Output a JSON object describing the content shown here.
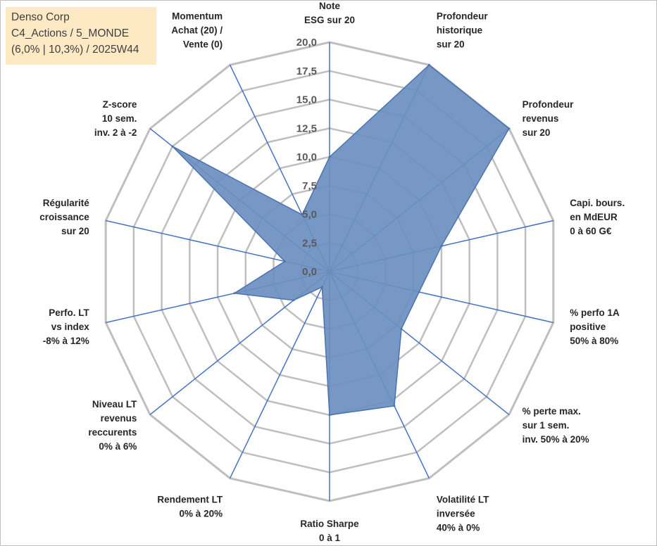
{
  "title_box": {
    "line1": "Denso Corp",
    "line2": "C4_Actions / 5_MONDE",
    "line3": "(6,0% | 10,3%) / 2025W44"
  },
  "chart_data": {
    "type": "radar",
    "title": "Denso Corp",
    "rlim": [
      0,
      20
    ],
    "ticks": [
      "0,0",
      "2,5",
      "5,0",
      "7,5",
      "10,0",
      "12,5",
      "15,0",
      "17,5",
      "20,0"
    ],
    "grid": true,
    "colors": {
      "fill": "#6b8fbf",
      "outline": "#4a73b0",
      "spoke": "#4472c4",
      "grid": "#bfbfbf"
    },
    "axes": [
      {
        "lines": [
          "Note",
          "ESG sur 20"
        ],
        "value": 10.0
      },
      {
        "lines": [
          "Profondeur",
          "historique",
          "sur 20"
        ],
        "value": 20.0
      },
      {
        "lines": [
          "Profondeur",
          "revenus",
          "sur 20"
        ],
        "value": 20.0
      },
      {
        "lines": [
          "Capi. bours.",
          "en MdEUR",
          "0 à 60 G€"
        ],
        "value": 10.0
      },
      {
        "lines": [
          "% perfo 1A",
          "positive",
          "50% à 80%"
        ],
        "value": 8.0
      },
      {
        "lines": [
          "% perte max.",
          "sur 1 sem.",
          "inv. 50% à 20%"
        ],
        "value": 8.0
      },
      {
        "lines": [
          "Volatilité LT",
          "inversée",
          "40% à 0%"
        ],
        "value": 13.0
      },
      {
        "lines": [
          "Ratio Sharpe",
          "0 à 1"
        ],
        "value": 12.5
      },
      {
        "lines": [
          "Rendement LT",
          "0% à 20%"
        ],
        "value": 1.5
      },
      {
        "lines": [
          "Niveau LT",
          "revenus",
          "reccurents",
          "0% à 6%"
        ],
        "value": 4.0
      },
      {
        "lines": [
          "Perfo. LT",
          "vs index",
          "-8% à 12%"
        ],
        "value": 8.5
      },
      {
        "lines": [
          "Régularité",
          "croissance",
          "sur 20"
        ],
        "value": 4.0
      },
      {
        "lines": [
          "Z-score",
          "10 sem.",
          "inv. 2 à -2"
        ],
        "value": 17.5
      },
      {
        "lines": [
          "Momentum",
          "Achat (20) /",
          "Vente (0)"
        ],
        "value": 5.5
      }
    ]
  }
}
